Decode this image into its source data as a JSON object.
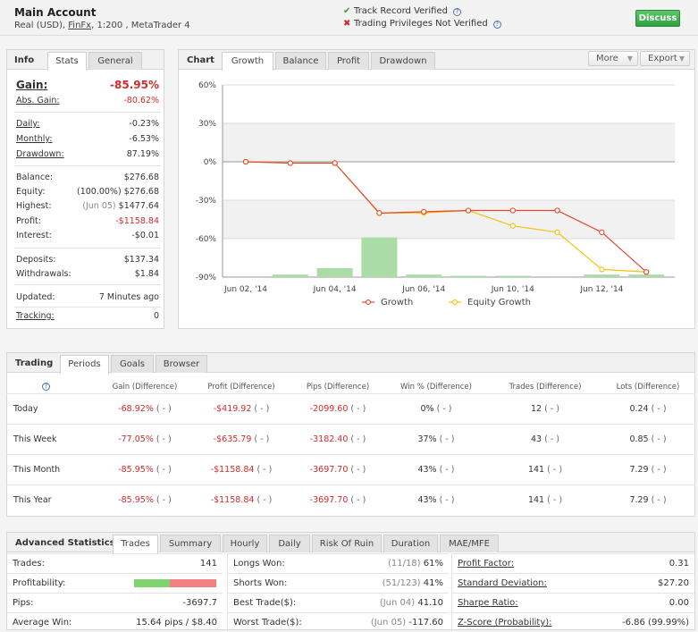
{
  "header": {
    "account_name": "Main Account",
    "account_type": "Real (USD),",
    "broker": "FinFx",
    "leverage_platform": ", 1:200 , MetaTrader 4",
    "track_record": "Track Record Verified",
    "trading_privileges": "Trading Privileges Not Verified",
    "discuss_label": "Discuss",
    "help_glyph": "?"
  },
  "info": {
    "title": "Info",
    "tabs": [
      "Stats",
      "General"
    ],
    "gain_label": "Gain:",
    "gain_value": "-85.95%",
    "abs_gain_label": "Abs. Gain:",
    "abs_gain_value": "-80.62%",
    "daily_label": "Daily:",
    "daily_value": "-0.23%",
    "monthly_label": "Monthly:",
    "monthly_value": "-6.53%",
    "drawdown_label": "Drawdown:",
    "drawdown_value": "87.19%",
    "balance_label": "Balance:",
    "balance_value": "$276.68",
    "equity_label": "Equity:",
    "equity_pct": "(100.00%)",
    "equity_value": "$276.68",
    "highest_label": "Highest:",
    "highest_date": "(Jun 05)",
    "highest_value": "$1477.64",
    "profit_label": "Profit:",
    "profit_value": "-$1158.84",
    "interest_label": "Interest:",
    "interest_value": "-$0.01",
    "deposits_label": "Deposits:",
    "deposits_value": "$137.34",
    "withdrawals_label": "Withdrawals:",
    "withdrawals_value": "$1.84",
    "updated_label": "Updated:",
    "updated_value": "7 Minutes ago",
    "tracking_label": "Tracking:",
    "tracking_value": "0"
  },
  "chart_panel": {
    "title": "Chart",
    "tabs": [
      "Growth",
      "Balance",
      "Profit",
      "Drawdown"
    ],
    "more_label": "More",
    "export_label": "Export"
  },
  "chart_data": {
    "type": "line",
    "x": [
      "Jun 02, '14",
      "Jun 03, '14",
      "Jun 04, '14",
      "Jun 05, '14",
      "Jun 06, '14",
      "Jun 09, '14",
      "Jun 10, '14",
      "Jun 11, '14",
      "Jun 12, '14",
      "Jun 13, '14"
    ],
    "x_tick_labels": [
      "Jun 02, '14",
      "Jun 04, '14",
      "Jun 06, '14",
      "Jun 10, '14",
      "Jun 12, '14"
    ],
    "y_tick_labels": [
      "60%",
      "30%",
      "0%",
      "-30%",
      "-60%",
      "-90%"
    ],
    "ylim": [
      -90,
      60
    ],
    "series": [
      {
        "name": "Growth",
        "color": "#e8472a",
        "values": [
          0,
          -1,
          -1,
          -40,
          -39,
          -38,
          -38,
          -38,
          -55,
          -86
        ]
      },
      {
        "name": "Equity Growth",
        "color": "#f3c20f",
        "values": [
          0,
          -1,
          -1,
          -40,
          -40,
          -38,
          -50,
          -55,
          -84,
          -86
        ]
      }
    ],
    "bars": {
      "color": "#a9dca6",
      "values": [
        0,
        2,
        7,
        31,
        2,
        1,
        1,
        0,
        2,
        2
      ]
    },
    "grid": true,
    "legend_position": "bottom"
  },
  "trading": {
    "title": "Trading",
    "tabs": [
      "Periods",
      "Goals",
      "Browser"
    ],
    "help_glyph": "?",
    "columns": [
      "Gain (Difference)",
      "Profit (Difference)",
      "Pips (Difference)",
      "Win % (Difference)",
      "Trades (Difference)",
      "Lots (Difference)"
    ],
    "diff": "( - )",
    "rows": [
      {
        "period": "Today",
        "gain": "-68.92%",
        "profit": "-$419.92",
        "pips": "-2099.60",
        "win": "0%",
        "trades": "12",
        "lots": "0.24"
      },
      {
        "period": "This Week",
        "gain": "-77.05%",
        "profit": "-$635.79",
        "pips": "-3182.40",
        "win": "37%",
        "trades": "43",
        "lots": "0.85"
      },
      {
        "period": "This Month",
        "gain": "-85.95%",
        "profit": "-$1158.84",
        "pips": "-3697.70",
        "win": "43%",
        "trades": "141",
        "lots": "7.29"
      },
      {
        "period": "This Year",
        "gain": "-85.95%",
        "profit": "-$1158.84",
        "pips": "-3697.70",
        "win": "43%",
        "trades": "141",
        "lots": "7.29"
      }
    ]
  },
  "advanced": {
    "title": "Advanced Statistics",
    "tabs": [
      "Trades",
      "Summary",
      "Hourly",
      "Daily",
      "Risk Of Ruin",
      "Duration",
      "MAE/MFE"
    ],
    "col1": {
      "trades_label": "Trades:",
      "trades_value": "141",
      "profitability_label": "Profitability:",
      "profitability_win_fraction": 0.43,
      "pips_label": "Pips:",
      "pips_value": "-3697.7",
      "avg_win_label": "Average Win:",
      "avg_win_value": "15.64 pips / $8.40"
    },
    "col2": {
      "longs_label": "Longs Won:",
      "longs_count": "(11/18)",
      "longs_pct": "61%",
      "shorts_label": "Shorts Won:",
      "shorts_count": "(51/123)",
      "shorts_pct": "41%",
      "best_label": "Best Trade($):",
      "best_date": "(Jun 04)",
      "best_value": "41.10",
      "worst_label": "Worst Trade($):",
      "worst_date": "(Jun 05)",
      "worst_value": "-117.60"
    },
    "col3": {
      "pf_label": "Profit Factor:",
      "pf_value": "0.31",
      "sd_label": "Standard Deviation:",
      "sd_value": "$27.20",
      "sharpe_label": "Sharpe Ratio:",
      "sharpe_value": "0.00",
      "z_label": "Z-Score (Probability):",
      "z_value": "-6.86 (99.99%)"
    }
  }
}
